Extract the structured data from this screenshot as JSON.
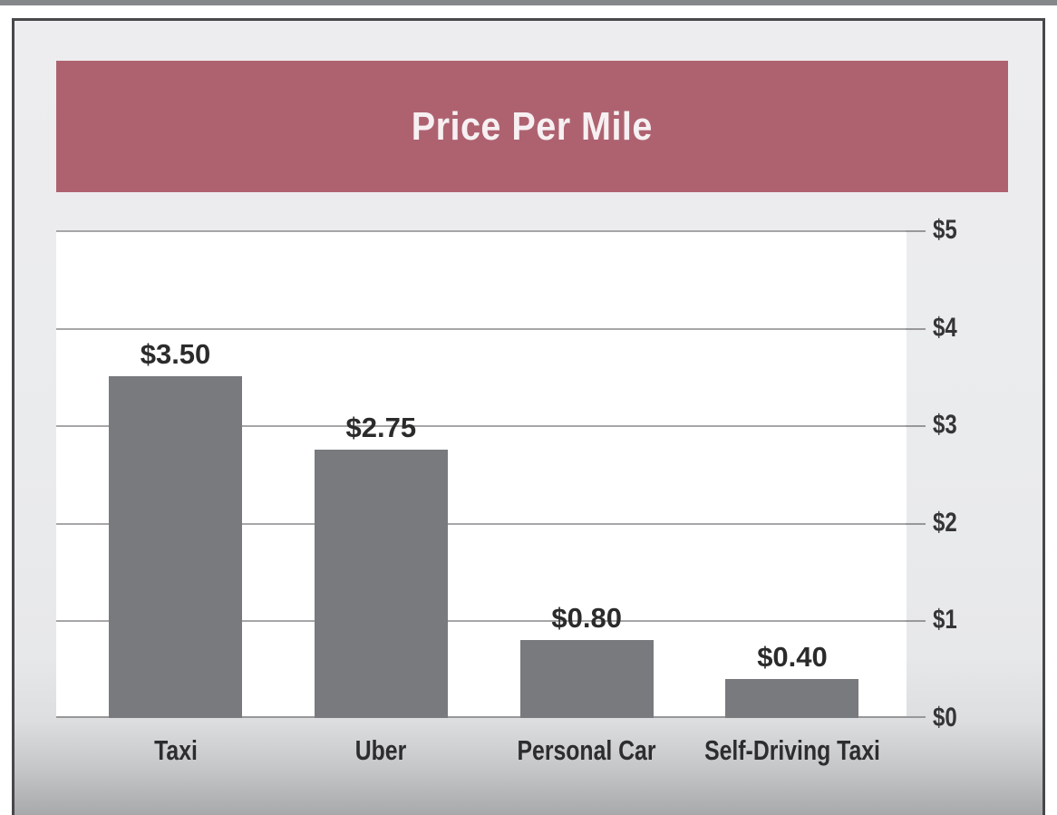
{
  "window": {
    "top_strip_color": "#86878b",
    "frame_border_color": "#48484b"
  },
  "header": {
    "title": "Price Per Mile",
    "banner_color": "#ae6270",
    "text_color": "#f7f0f2"
  },
  "chart_data": {
    "type": "bar",
    "title": "Price Per Mile",
    "categories": [
      "Taxi",
      "Uber",
      "Personal Car",
      "Self-Driving Taxi"
    ],
    "values": [
      3.5,
      2.75,
      0.8,
      0.4
    ],
    "value_labels": [
      "$3.50",
      "$2.75",
      "$0.80",
      "$0.40"
    ],
    "xlabel": "",
    "ylabel": "",
    "ylim": [
      0,
      5
    ],
    "y_ticks": [
      {
        "value": 5,
        "label": "$5"
      },
      {
        "value": 4,
        "label": "$4"
      },
      {
        "value": 3,
        "label": "$3"
      },
      {
        "value": 2,
        "label": "$2"
      },
      {
        "value": 1,
        "label": "$1"
      },
      {
        "value": 0,
        "label": "$0"
      }
    ],
    "y_axis_side": "right",
    "grid": true,
    "legend": false,
    "bar_color": "#797a7d",
    "gridline_color": "#a6a6a8",
    "baseline_color": "#98989a",
    "plot_background": "#ffffff"
  }
}
